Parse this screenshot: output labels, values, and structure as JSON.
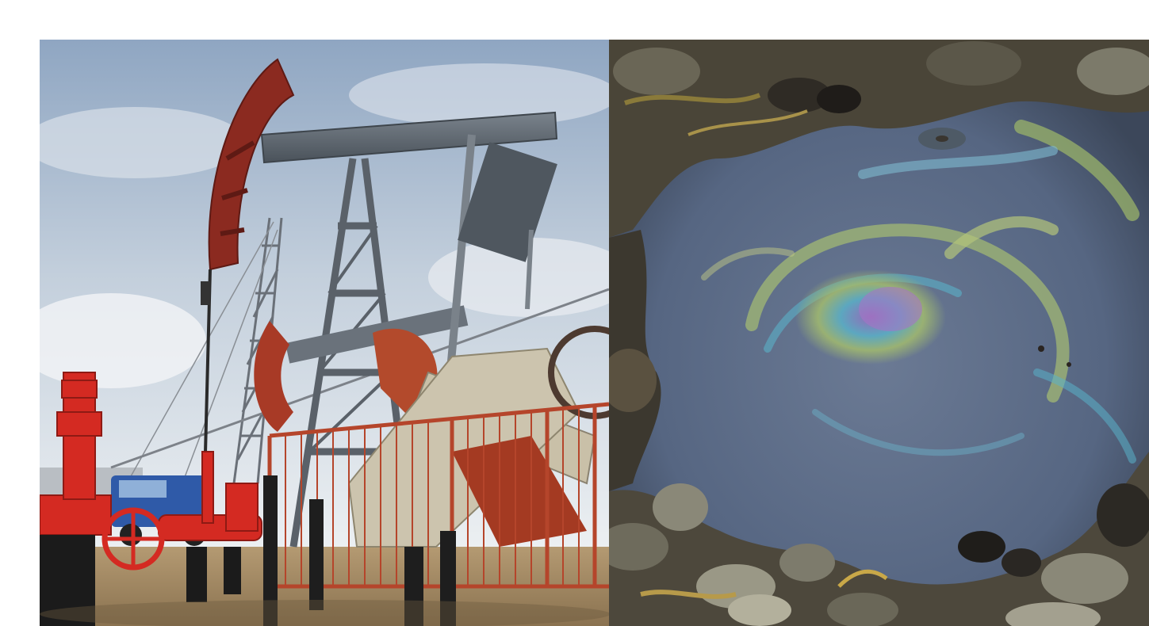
{
  "photos": [
    {
      "subject": "oil-pumpjack",
      "colors": {
        "sky_top": "#9fb2c9",
        "sky_bottom": "#e7ebef",
        "ground": "#a48a62",
        "beam_steel": "#5d6670",
        "crank_red": "#8b2a20",
        "valve_red": "#d42a22",
        "truck_blue": "#2f5aa8",
        "rail_orange": "#b5452b"
      }
    },
    {
      "subject": "oil-sheen-on-water",
      "colors": {
        "water": "#5d6d86",
        "water_dark": "#3f4a5e",
        "sheen_green": "#9ab36a",
        "sheen_purple": "#8a5aa8",
        "sheen_cyan": "#5ab0c8",
        "rock": "#7c7a6a",
        "seaweed": "#8a7a3a"
      }
    }
  ]
}
